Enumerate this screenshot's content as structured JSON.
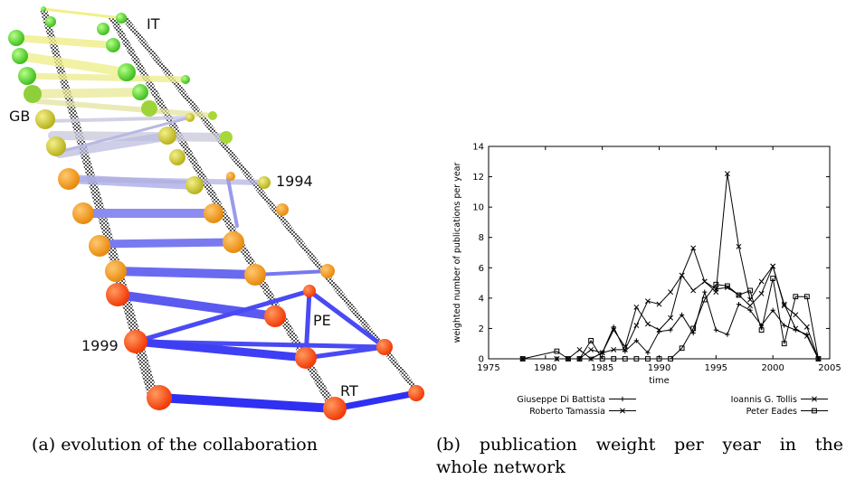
{
  "left_figure": {
    "labels": {
      "top_right": "IT",
      "left_mid": "GB",
      "year_upper": "1994",
      "year_lower": "1999",
      "node_pe": "PE",
      "node_rt": "RT"
    }
  },
  "captions": {
    "a": "(a) evolution of the collaboration",
    "b_line1": "(b) publication weight per year in the",
    "b_line2": "whole network"
  },
  "chart_data": {
    "type": "line",
    "xlabel": "time",
    "ylabel": "weighted number of publications per year",
    "xlim": [
      1975,
      2005
    ],
    "ylim": [
      0,
      14
    ],
    "xticks": [
      1975,
      1980,
      1985,
      1990,
      1995,
      2000,
      2005
    ],
    "yticks": [
      0,
      2,
      4,
      6,
      8,
      10,
      12,
      14
    ],
    "grid": false,
    "legend": "bottom",
    "series": [
      {
        "name": "Giuseppe Di Battista",
        "marker": "plus",
        "x": [
          1978,
          1981,
          1982,
          1983,
          1984,
          1985,
          1986,
          1987,
          1988,
          1989,
          1990,
          1991,
          1992,
          1993,
          1994,
          1995,
          1996,
          1997,
          1998,
          1999,
          2000,
          2001,
          2002,
          2003,
          2004
        ],
        "y": [
          0,
          0,
          0,
          0,
          0,
          0.4,
          2.1,
          0.5,
          1.2,
          0.4,
          1.8,
          1.9,
          2.9,
          1.7,
          4.4,
          1.9,
          1.6,
          3.6,
          3.2,
          2.2,
          3.2,
          2.2,
          1.9,
          1.6,
          0
        ]
      },
      {
        "name": "Roberto Tamassia",
        "marker": "x",
        "x": [
          1978,
          1981,
          1982,
          1983,
          1984,
          1985,
          1986,
          1987,
          1988,
          1989,
          1990,
          1991,
          1992,
          1993,
          1994,
          1995,
          1996,
          1997,
          1998,
          1999,
          2000,
          2001,
          2002,
          2003,
          2004
        ],
        "y": [
          0,
          0,
          0,
          0.6,
          0,
          0.4,
          1.9,
          0.8,
          3.4,
          2.3,
          1.9,
          2.7,
          5.5,
          4.5,
          5.1,
          4.4,
          12.2,
          7.4,
          3.9,
          5.1,
          6.1,
          3.6,
          2.0,
          1.5,
          0
        ]
      },
      {
        "name": "Ioannis G. Tollis",
        "marker": "x",
        "x": [
          1978,
          1981,
          1982,
          1983,
          1984,
          1985,
          1986,
          1987,
          1988,
          1989,
          1990,
          1991,
          1992,
          1993,
          1994,
          1995,
          1996,
          1997,
          1998,
          1999,
          2000,
          2001,
          2002,
          2003,
          2004
        ],
        "y": [
          0,
          0,
          0,
          0,
          0.6,
          0.4,
          0.6,
          0.6,
          2.2,
          3.8,
          3.6,
          4.4,
          5.5,
          7.3,
          5.1,
          4.6,
          4.7,
          4.2,
          3.5,
          4.3,
          6.1,
          3.5,
          2.9,
          2.1,
          0
        ]
      },
      {
        "name": "Peter Eades",
        "marker": "square",
        "x": [
          1978,
          1981,
          1982,
          1983,
          1984,
          1985,
          1986,
          1987,
          1988,
          1989,
          1990,
          1991,
          1992,
          1993,
          1994,
          1995,
          1996,
          1997,
          1998,
          1999,
          2000,
          2001,
          2002,
          2003,
          2004
        ],
        "y": [
          0,
          0.5,
          0,
          0,
          1.2,
          0,
          0,
          0,
          0,
          0,
          0,
          0,
          0.7,
          2.0,
          3.9,
          4.9,
          4.8,
          4.2,
          4.5,
          1.9,
          5.3,
          1.0,
          4.1,
          4.1,
          0
        ]
      }
    ]
  }
}
